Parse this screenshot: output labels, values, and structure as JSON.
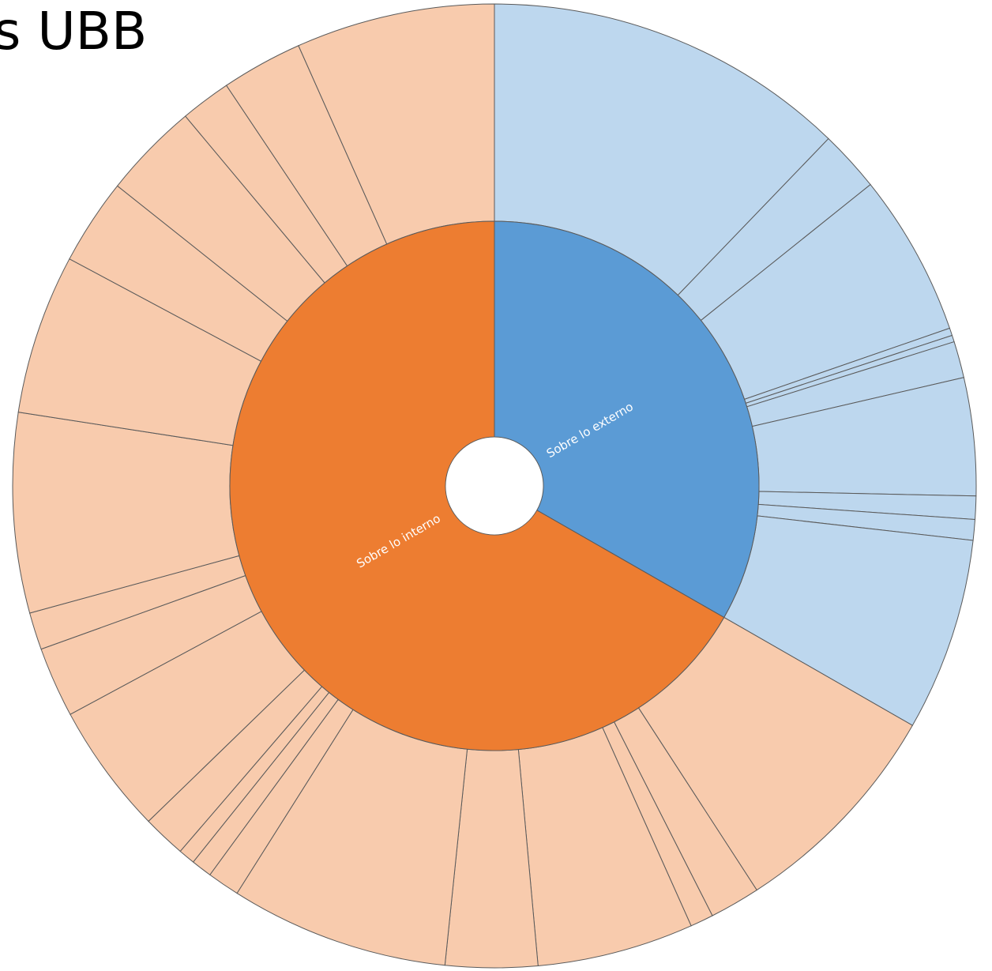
{
  "chart_data": {
    "type": "sunburst",
    "title": "s UBB",
    "series": [
      {
        "name": "Sobre lo externo",
        "color": "#5b9bd5",
        "child_color": "#bdd7ee",
        "values": [
          43.9,
          7.4,
          19.6,
          0.9,
          0.8,
          4.4,
          14.2,
          2.8,
          2.5,
          23.3
        ]
      },
      {
        "name": "Sobre lo interno",
        "color": "#ed7d31",
        "child_color": "#f8cbad",
        "values": [
          27.2,
          6.1,
          2.8,
          18.9,
          11.1,
          26.4,
          3.9,
          2.5,
          2.0,
          5.2,
          15.8,
          8.5,
          4.5,
          24.1,
          19.3,
          10.4,
          11.6,
          6.1,
          9.8,
          24.0
        ]
      }
    ]
  }
}
